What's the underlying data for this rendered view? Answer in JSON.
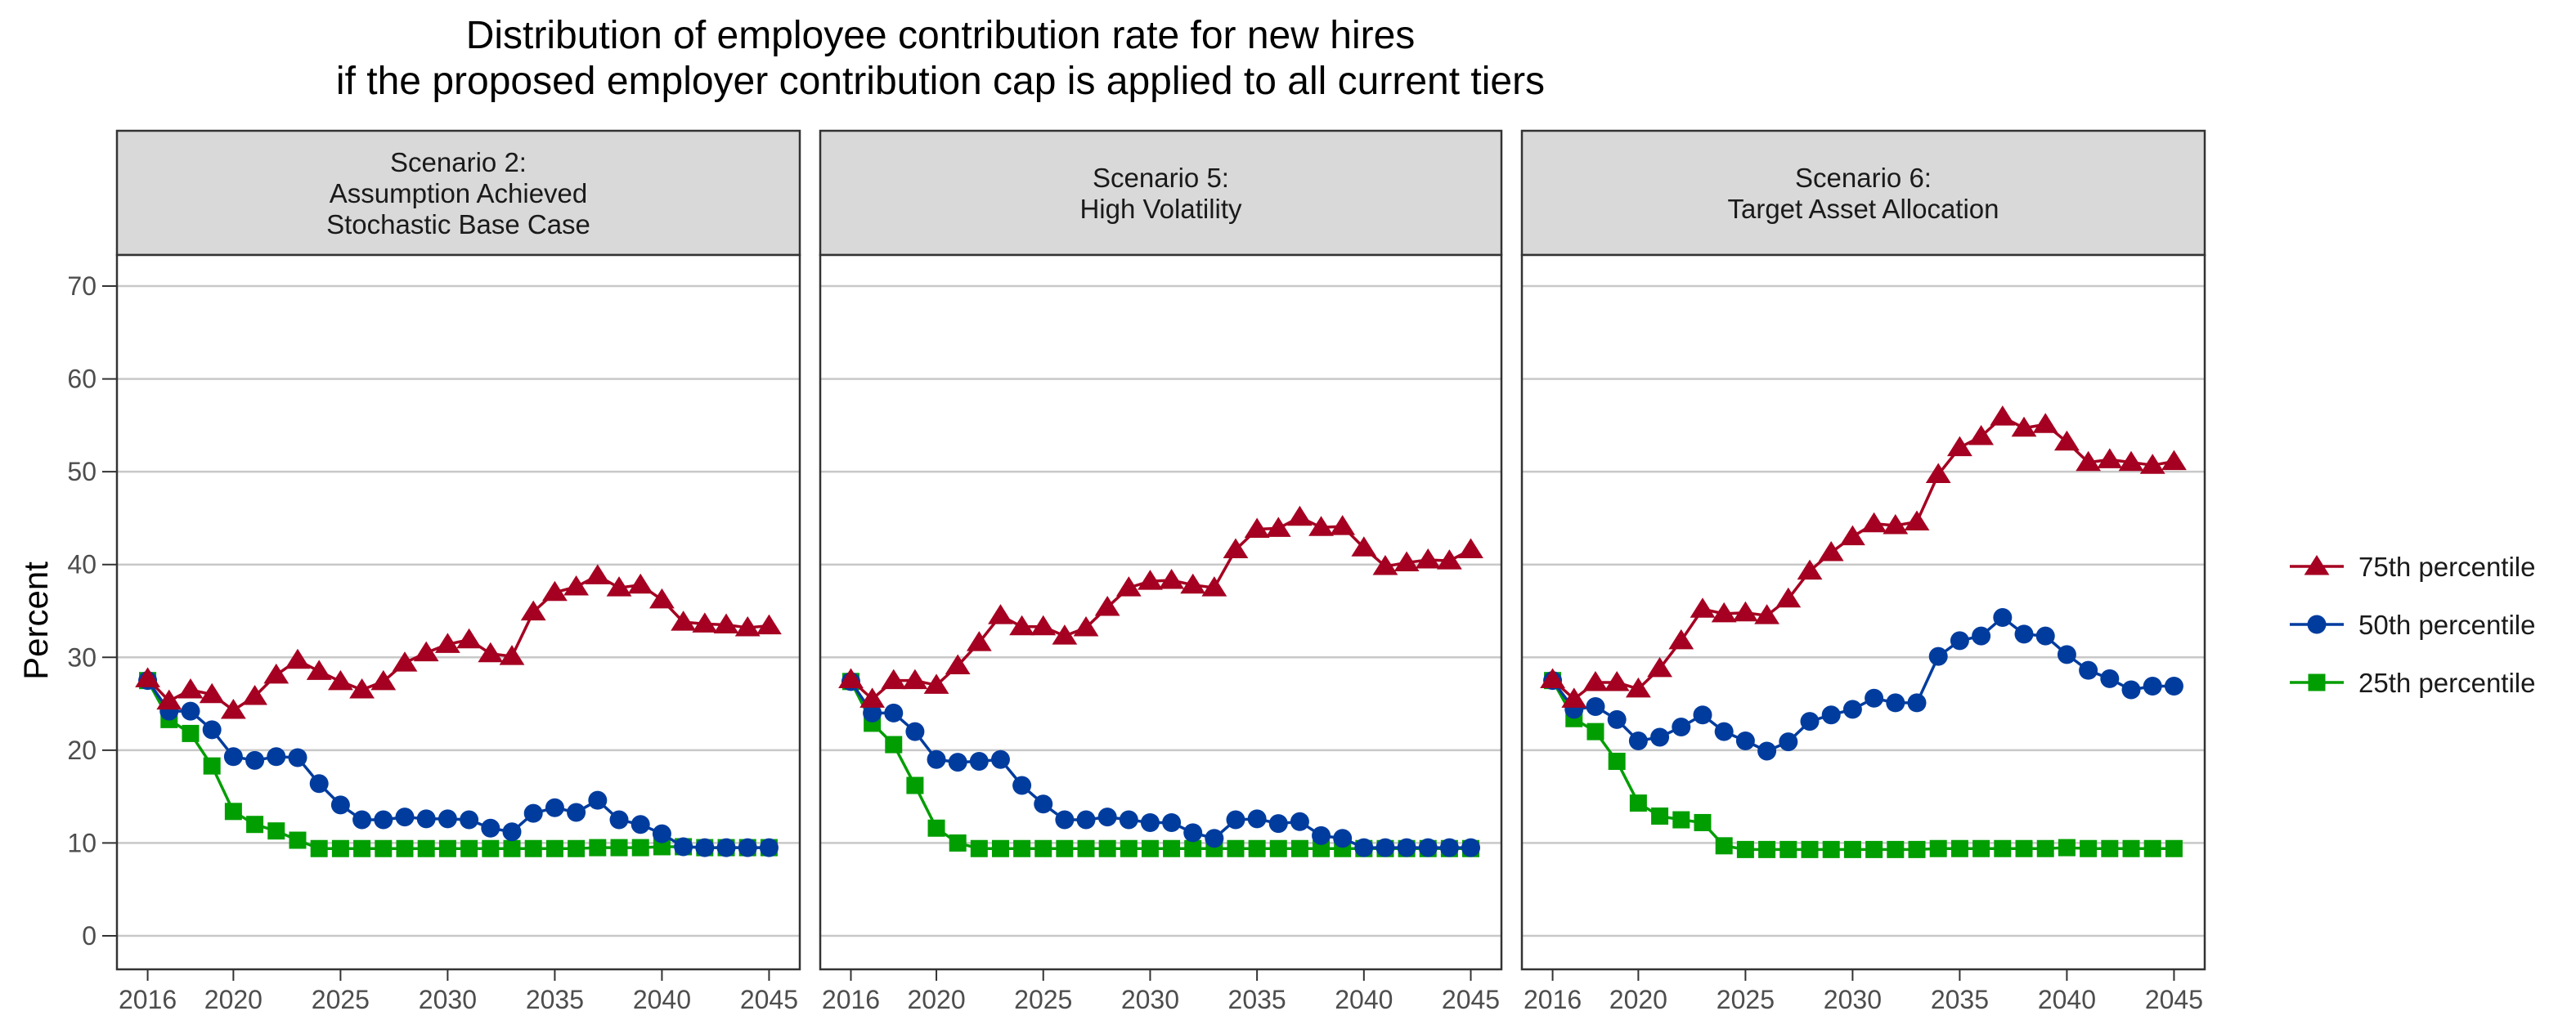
{
  "chart_data": {
    "type": "line",
    "title": "Distribution of employee contribution rate for new hires",
    "subtitle": "if the proposed employer contribution cap is applied to all current tiers",
    "ylabel": "Percent",
    "xlabel": "",
    "ylim": [
      0,
      70
    ],
    "yticks": [
      "0",
      "10",
      "20",
      "30",
      "40",
      "50",
      "60",
      "70"
    ],
    "xticks": [
      "2016",
      "2020",
      "2025",
      "2030",
      "2035",
      "2040",
      "2045"
    ],
    "xlim": [
      2016,
      2045
    ],
    "grid": "horizontal",
    "legend_position": "right",
    "colors": {
      "p75": "#A50021",
      "p50": "#003C9E",
      "p25": "#009E00"
    },
    "legend": [
      {
        "key": "p75",
        "label": "75th percentile",
        "marker": "triangle"
      },
      {
        "key": "p50",
        "label": "50th percentile",
        "marker": "circle"
      },
      {
        "key": "p25",
        "label": "25th percentile",
        "marker": "square"
      }
    ],
    "x": [
      2016,
      2017,
      2018,
      2019,
      2020,
      2021,
      2022,
      2023,
      2024,
      2025,
      2026,
      2027,
      2028,
      2029,
      2030,
      2031,
      2032,
      2033,
      2034,
      2035,
      2036,
      2037,
      2038,
      2039,
      2040,
      2041,
      2042,
      2043,
      2044,
      2045
    ],
    "panels": [
      {
        "strip": [
          "Scenario 2:",
          "Assumption Achieved",
          "Stochastic Base Case"
        ],
        "series": [
          {
            "key": "p75",
            "name": "75th percentile",
            "values": [
              27.7,
              25.3,
              26.5,
              26.0,
              24.3,
              25.8,
              28.1,
              29.7,
              28.5,
              27.4,
              26.5,
              27.4,
              29.4,
              30.5,
              31.4,
              31.9,
              30.4,
              30.1,
              34.9,
              37.0,
              37.6,
              38.8,
              37.5,
              37.8,
              36.2,
              33.8,
              33.6,
              33.5,
              33.2,
              33.4
            ]
          },
          {
            "key": "p50",
            "name": "50th percentile",
            "values": [
              27.5,
              24.2,
              24.2,
              22.2,
              19.3,
              18.9,
              19.3,
              19.2,
              16.4,
              14.1,
              12.5,
              12.5,
              12.8,
              12.6,
              12.6,
              12.5,
              11.6,
              11.2,
              13.2,
              13.8,
              13.3,
              14.6,
              12.5,
              12.0,
              11.0,
              9.6,
              9.5,
              9.5,
              9.5,
              9.5
            ]
          },
          {
            "key": "p25",
            "name": "25th percentile",
            "values": [
              27.5,
              23.3,
              21.8,
              18.3,
              13.4,
              12.0,
              11.3,
              10.3,
              9.4,
              9.4,
              9.4,
              9.4,
              9.4,
              9.4,
              9.4,
              9.4,
              9.4,
              9.4,
              9.4,
              9.4,
              9.4,
              9.5,
              9.5,
              9.5,
              9.6,
              9.6,
              9.5,
              9.5,
              9.5,
              9.5
            ]
          }
        ]
      },
      {
        "strip": [
          "Scenario 5:",
          "High Volatility"
        ],
        "series": [
          {
            "key": "p75",
            "name": "75th percentile",
            "values": [
              27.6,
              25.5,
              27.5,
              27.5,
              27.0,
              29.1,
              31.6,
              34.5,
              33.3,
              33.3,
              32.3,
              33.2,
              35.4,
              37.5,
              38.2,
              38.3,
              37.8,
              37.5,
              41.6,
              43.8,
              43.9,
              45.1,
              44.0,
              44.1,
              41.8,
              39.8,
              40.2,
              40.5,
              40.4,
              41.6
            ]
          },
          {
            "key": "p50",
            "name": "50th percentile",
            "values": [
              27.4,
              24.0,
              24.0,
              22.0,
              19.0,
              18.7,
              18.8,
              19.0,
              16.2,
              14.2,
              12.5,
              12.5,
              12.8,
              12.5,
              12.2,
              12.2,
              11.1,
              10.5,
              12.5,
              12.6,
              12.1,
              12.3,
              10.8,
              10.5,
              9.5,
              9.5,
              9.5,
              9.5,
              9.5,
              9.5
            ]
          },
          {
            "key": "p25",
            "name": "25th percentile",
            "values": [
              27.4,
              22.9,
              20.6,
              16.2,
              11.6,
              10.0,
              9.4,
              9.4,
              9.4,
              9.4,
              9.4,
              9.4,
              9.4,
              9.4,
              9.4,
              9.4,
              9.4,
              9.4,
              9.4,
              9.4,
              9.4,
              9.4,
              9.4,
              9.4,
              9.4,
              9.4,
              9.4,
              9.4,
              9.4,
              9.4
            ]
          }
        ]
      },
      {
        "strip": [
          "Scenario 6:",
          "Target Asset Allocation"
        ],
        "series": [
          {
            "key": "p75",
            "name": "75th percentile",
            "values": [
              27.6,
              25.5,
              27.3,
              27.3,
              26.6,
              28.8,
              31.8,
              35.2,
              34.7,
              34.8,
              34.5,
              36.3,
              39.3,
              41.3,
              43.0,
              44.4,
              44.2,
              44.6,
              49.7,
              52.6,
              53.8,
              55.9,
              54.7,
              55.1,
              53.2,
              51.0,
              51.3,
              51.0,
              50.7,
              51.1
            ]
          },
          {
            "key": "p50",
            "name": "50th percentile",
            "values": [
              27.5,
              24.4,
              24.7,
              23.3,
              21.0,
              21.4,
              22.5,
              23.8,
              22.0,
              21.0,
              19.9,
              20.9,
              23.1,
              23.8,
              24.4,
              25.6,
              25.1,
              25.1,
              30.1,
              31.8,
              32.3,
              34.3,
              32.5,
              32.3,
              30.3,
              28.6,
              27.7,
              26.5,
              26.9,
              26.9
            ]
          },
          {
            "key": "p25",
            "name": "25th percentile",
            "values": [
              27.5,
              23.4,
              22.0,
              18.8,
              14.3,
              12.9,
              12.5,
              12.2,
              9.7,
              9.3,
              9.3,
              9.3,
              9.3,
              9.3,
              9.3,
              9.3,
              9.3,
              9.3,
              9.4,
              9.4,
              9.4,
              9.4,
              9.4,
              9.4,
              9.5,
              9.4,
              9.4,
              9.4,
              9.4,
              9.4
            ]
          }
        ]
      }
    ]
  }
}
